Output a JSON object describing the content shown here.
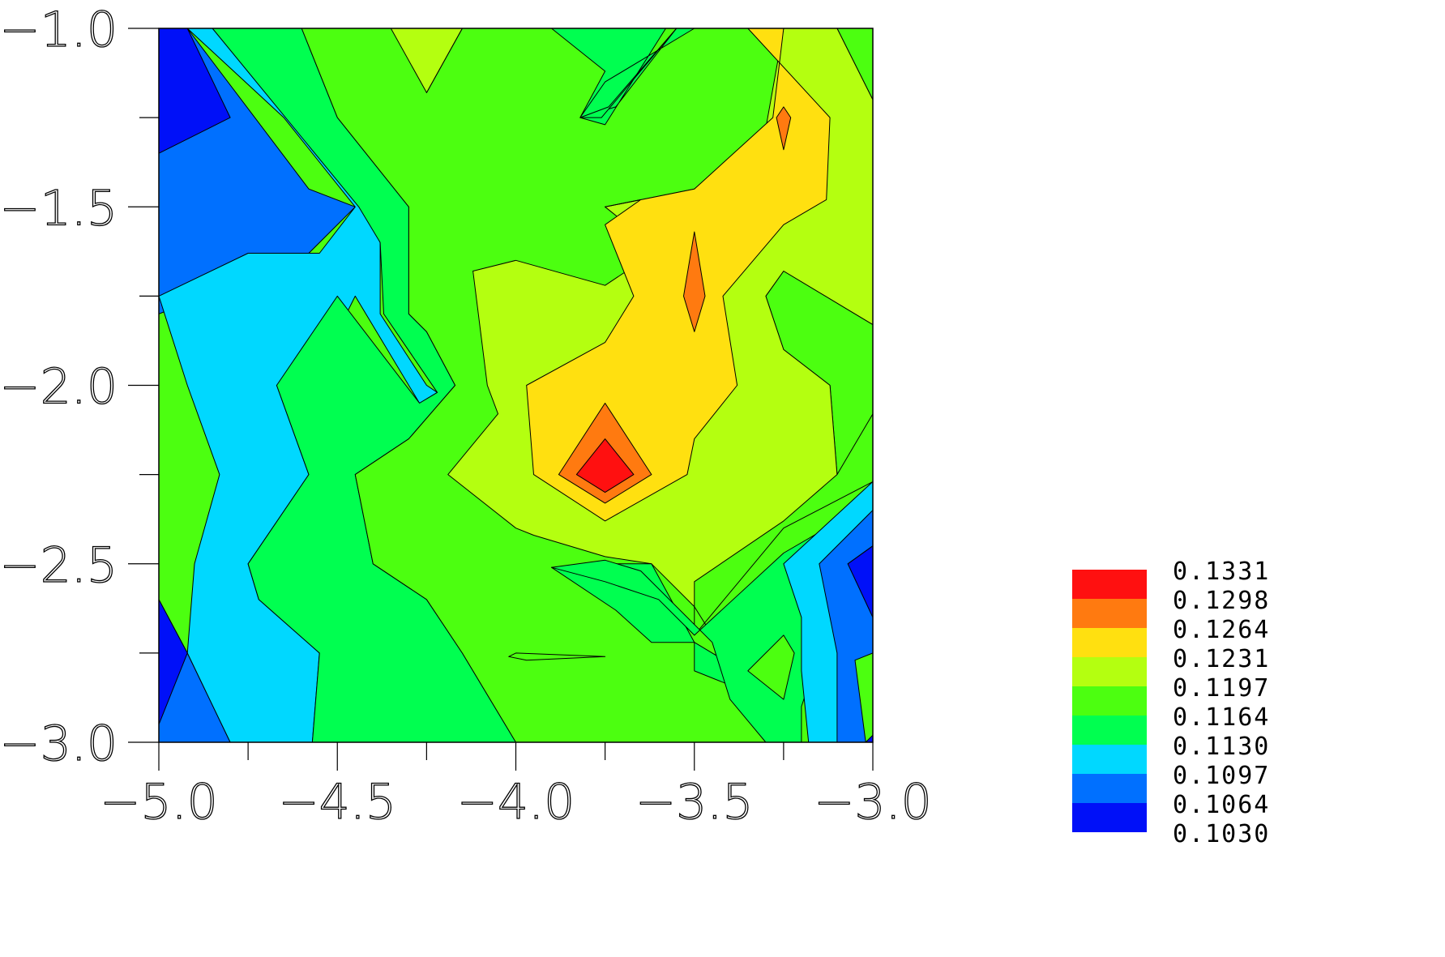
{
  "chart_data": {
    "type": "contour",
    "title": "",
    "xlabel": "",
    "ylabel": "",
    "xlim": [
      -5.0,
      -3.0
    ],
    "ylim": [
      -3.0,
      -1.0
    ],
    "x_ticks": [
      "-5.0",
      "-4.5",
      "-4.0",
      "-3.5",
      "-3.0"
    ],
    "y_ticks": [
      "-1.0",
      "-1.5",
      "-2.0",
      "-2.5",
      "-3.0"
    ],
    "minor_ticks": true,
    "grid": false,
    "legend": {
      "placement": "bottom-right",
      "levels": [
        "0.1331",
        "0.1298",
        "0.1264",
        "0.1231",
        "0.1197",
        "0.1164",
        "0.1130",
        "0.1097",
        "0.1064",
        "0.1030"
      ],
      "colors": [
        "#ff1010",
        "#ff7a10",
        "#ffe010",
        "#b4ff10",
        "#4cff10",
        "#00ff50",
        "#00d8ff",
        "#0070ff",
        "#0010f8",
        ""
      ]
    },
    "regions": [
      {
        "level": "0.1064",
        "color": "#0070ff",
        "points": [
          [
            -5.0,
            -1.0
          ],
          [
            -4.92,
            -1.0
          ],
          [
            -4.58,
            -1.45
          ],
          [
            -4.45,
            -1.5
          ],
          [
            -4.6,
            -1.65
          ],
          [
            -4.62,
            -1.65
          ],
          [
            -5.0,
            -1.8
          ],
          [
            -5.0,
            -2.6
          ],
          [
            -4.92,
            -2.75
          ],
          [
            -4.8,
            -3.0
          ],
          [
            -5.0,
            -3.0
          ]
        ]
      },
      {
        "level": "0.1097",
        "color": "#00d8ff",
        "points": [
          [
            -4.92,
            -1.0
          ],
          [
            -4.85,
            -1.0
          ],
          [
            -4.45,
            -1.45
          ],
          [
            -4.38,
            -1.6
          ],
          [
            -4.38,
            -1.8
          ],
          [
            -4.25,
            -2.0
          ],
          [
            -4.22,
            -2.02
          ],
          [
            -4.27,
            -2.05
          ],
          [
            -4.45,
            -1.75
          ],
          [
            -4.55,
            -1.95
          ],
          [
            -4.67,
            -2.0
          ],
          [
            -4.58,
            -2.25
          ],
          [
            -4.75,
            -2.5
          ],
          [
            -4.72,
            -2.6
          ],
          [
            -4.55,
            -2.75
          ],
          [
            -4.57,
            -3.0
          ],
          [
            -4.8,
            -3.0
          ],
          [
            -4.92,
            -2.75
          ],
          [
            -4.9,
            -2.5
          ],
          [
            -4.83,
            -2.25
          ],
          [
            -4.92,
            -2.0
          ],
          [
            -5.0,
            -1.75
          ],
          [
            -4.75,
            -1.63
          ],
          [
            -4.55,
            -1.63
          ],
          [
            -4.45,
            -1.5
          ],
          [
            -4.65,
            -1.25
          ]
        ]
      },
      {
        "level": "0.1130",
        "color": "#00ff50",
        "points": [
          [
            -4.85,
            -1.0
          ],
          [
            -4.6,
            -1.0
          ],
          [
            -4.5,
            -1.25
          ],
          [
            -4.3,
            -1.5
          ],
          [
            -4.3,
            -1.8
          ],
          [
            -4.25,
            -1.85
          ],
          [
            -4.17,
            -2.0
          ],
          [
            -4.3,
            -2.15
          ],
          [
            -4.45,
            -2.25
          ],
          [
            -4.4,
            -2.5
          ],
          [
            -4.25,
            -2.6
          ],
          [
            -4.15,
            -2.75
          ],
          [
            -4.0,
            -3.0
          ],
          [
            -4.57,
            -3.0
          ],
          [
            -4.55,
            -2.75
          ],
          [
            -4.72,
            -2.6
          ],
          [
            -4.75,
            -2.5
          ],
          [
            -4.58,
            -2.25
          ],
          [
            -4.67,
            -2.0
          ],
          [
            -4.5,
            -1.75
          ],
          [
            -4.27,
            -2.05
          ],
          [
            -4.22,
            -2.02
          ],
          [
            -4.37,
            -1.8
          ],
          [
            -4.38,
            -1.6
          ],
          [
            -4.44,
            -1.5
          ]
        ]
      },
      {
        "level": "0.1164",
        "color": "#4cff10",
        "points": [
          [
            -4.6,
            -1.0
          ],
          [
            -4.3,
            -1.0
          ],
          [
            -4.25,
            -1.18
          ],
          [
            -4.15,
            -1.0
          ],
          [
            -3.6,
            -1.0
          ],
          [
            -3.3,
            -1.0
          ],
          [
            -3.1,
            -1.0
          ],
          [
            -3.0,
            -1.2
          ],
          [
            -3.0,
            -1.83
          ],
          [
            -3.25,
            -1.68
          ],
          [
            -3.3,
            -1.75
          ],
          [
            -3.25,
            -1.9
          ],
          [
            -3.12,
            -2.0
          ],
          [
            -3.1,
            -2.25
          ],
          [
            -3.0,
            -2.08
          ],
          [
            -3.0,
            -2.27
          ],
          [
            -3.25,
            -2.4
          ],
          [
            -3.5,
            -2.7
          ],
          [
            -3.5,
            -2.62
          ],
          [
            -3.4,
            -2.78
          ],
          [
            -3.3,
            -2.88
          ],
          [
            -3.25,
            -2.88
          ],
          [
            -3.22,
            -3.0
          ],
          [
            -3.35,
            -3.0
          ],
          [
            -3.7,
            -3.0
          ],
          [
            -4.0,
            -3.0
          ],
          [
            -4.15,
            -2.75
          ],
          [
            -4.25,
            -2.6
          ],
          [
            -4.4,
            -2.5
          ],
          [
            -4.45,
            -2.25
          ],
          [
            -4.3,
            -2.15
          ],
          [
            -4.17,
            -2.0
          ],
          [
            -4.25,
            -1.85
          ],
          [
            -4.3,
            -1.8
          ],
          [
            -4.3,
            -1.5
          ],
          [
            -4.5,
            -1.25
          ]
        ]
      },
      {
        "level": "0.1197",
        "color": "#b4ff10",
        "points": [
          [
            -4.3,
            -1.0
          ],
          [
            -4.15,
            -1.0
          ],
          [
            -4.25,
            -1.18
          ]
        ]
      },
      {
        "level": "0.1197",
        "color": "#b4ff10",
        "points": [
          [
            -4.0,
            -1.65
          ],
          [
            -3.75,
            -1.72
          ],
          [
            -3.6,
            -1.62
          ],
          [
            -3.75,
            -1.5
          ],
          [
            -3.5,
            -1.45
          ],
          [
            -3.3,
            -1.28
          ],
          [
            -3.25,
            -1.0
          ],
          [
            -3.1,
            -1.0
          ],
          [
            -3.0,
            -1.2
          ],
          [
            -3.0,
            -1.83
          ],
          [
            -3.25,
            -1.68
          ],
          [
            -3.3,
            -1.75
          ],
          [
            -3.25,
            -1.9
          ],
          [
            -3.12,
            -2.0
          ],
          [
            -3.1,
            -2.25
          ],
          [
            -3.25,
            -2.38
          ],
          [
            -3.5,
            -2.55
          ],
          [
            -3.5,
            -2.62
          ],
          [
            -3.62,
            -2.5
          ],
          [
            -3.75,
            -2.48
          ],
          [
            -3.95,
            -2.42
          ],
          [
            -4.0,
            -2.4
          ],
          [
            -4.19,
            -2.25
          ],
          [
            -4.05,
            -2.08
          ],
          [
            -4.08,
            -2.0
          ],
          [
            -4.12,
            -1.68
          ]
        ]
      },
      {
        "level": "0.1197",
        "color": "#b4ff10",
        "points": [
          [
            -4.35,
            -1.0
          ],
          [
            -4.15,
            -1.0
          ],
          [
            -4.25,
            -1.18
          ]
        ]
      },
      {
        "level": "0.1231",
        "color": "#ffe010",
        "points": [
          [
            -3.75,
            -1.5
          ],
          [
            -3.5,
            -1.45
          ],
          [
            -3.28,
            -1.25
          ],
          [
            -3.25,
            -1.0
          ],
          [
            -3.35,
            -1.0
          ],
          [
            -3.12,
            -1.25
          ],
          [
            -3.13,
            -1.48
          ],
          [
            -3.25,
            -1.55
          ],
          [
            -3.42,
            -1.75
          ],
          [
            -3.38,
            -2.0
          ],
          [
            -3.5,
            -2.15
          ],
          [
            -3.52,
            -2.25
          ],
          [
            -3.75,
            -2.38
          ],
          [
            -3.95,
            -2.25
          ],
          [
            -3.97,
            -2.0
          ],
          [
            -3.75,
            -1.88
          ],
          [
            -3.67,
            -1.75
          ],
          [
            -3.75,
            -1.55
          ],
          [
            -3.65,
            -1.48
          ]
        ]
      },
      {
        "level": "0.1231",
        "color": "#ffe010",
        "points": [
          [
            -3.85,
            -1.0
          ],
          [
            -3.75,
            -1.06
          ],
          [
            -3.68,
            -1.0
          ]
        ]
      },
      {
        "level": "0.1264",
        "color": "#ff7a10",
        "points": [
          [
            -3.75,
            -2.05
          ],
          [
            -3.62,
            -2.25
          ],
          [
            -3.75,
            -2.33
          ],
          [
            -3.88,
            -2.25
          ]
        ]
      },
      {
        "level": "0.1264",
        "color": "#ff7a10",
        "points": [
          [
            -3.5,
            -1.57
          ],
          [
            -3.47,
            -1.75
          ],
          [
            -3.5,
            -1.85
          ],
          [
            -3.53,
            -1.75
          ]
        ]
      },
      {
        "level": "0.1264",
        "color": "#ff7a10",
        "points": [
          [
            -3.25,
            -1.22
          ],
          [
            -3.23,
            -1.25
          ],
          [
            -3.25,
            -1.34
          ],
          [
            -3.27,
            -1.25
          ]
        ]
      },
      {
        "level": "0.1298",
        "color": "#ff1010",
        "points": [
          [
            -3.75,
            -2.15
          ],
          [
            -3.67,
            -2.25
          ],
          [
            -3.75,
            -2.3
          ],
          [
            -3.83,
            -2.25
          ]
        ]
      },
      {
        "level": "0.1130",
        "color": "#00ff50",
        "points": [
          [
            -3.9,
            -1.0
          ],
          [
            -3.75,
            -1.12
          ],
          [
            -3.82,
            -1.25
          ],
          [
            -3.72,
            -1.22
          ],
          [
            -3.55,
            -1.0
          ],
          [
            -3.5,
            -1.0
          ],
          [
            -3.75,
            -1.15
          ],
          [
            -3.82,
            -1.25
          ],
          [
            -3.75,
            -1.27
          ],
          [
            -3.58,
            -1.0
          ]
        ]
      },
      {
        "level": "0.1130",
        "color": "#00ff50",
        "points": [
          [
            -3.55,
            -1.0
          ],
          [
            -3.74,
            -1.22
          ],
          [
            -3.82,
            -1.25
          ],
          [
            -3.76,
            -1.25
          ]
        ]
      },
      {
        "level": "0.1130",
        "color": "#00ff50",
        "points": [
          [
            -3.75,
            -2.5
          ],
          [
            -3.62,
            -2.5
          ],
          [
            -3.5,
            -2.72
          ],
          [
            -3.5,
            -2.8
          ],
          [
            -3.25,
            -2.9
          ],
          [
            -3.25,
            -2.68
          ],
          [
            -3.3,
            -2.75
          ],
          [
            -3.27,
            -2.85
          ],
          [
            -3.4,
            -2.78
          ],
          [
            -3.5,
            -2.72
          ],
          [
            -3.62,
            -2.72
          ],
          [
            -3.72,
            -2.63
          ],
          [
            -3.9,
            -2.51
          ]
        ]
      },
      {
        "level": "0.1130",
        "color": "#00ff50",
        "points": [
          [
            -3.9,
            -2.51
          ],
          [
            -3.75,
            -2.49
          ],
          [
            -3.65,
            -2.52
          ],
          [
            -3.45,
            -2.72
          ],
          [
            -3.4,
            -2.88
          ],
          [
            -3.3,
            -3.0
          ],
          [
            -3.2,
            -3.0
          ],
          [
            -3.2,
            -2.9
          ],
          [
            -3.15,
            -2.75
          ],
          [
            -3.05,
            -2.64
          ],
          [
            -3.0,
            -2.55
          ],
          [
            -3.0,
            -2.27
          ],
          [
            -3.13,
            -2.4
          ],
          [
            -3.25,
            -2.47
          ],
          [
            -3.5,
            -2.7
          ],
          [
            -3.6,
            -2.6
          ],
          [
            -3.75,
            -2.55
          ]
        ]
      },
      {
        "level": "0.1164",
        "color": "#4cff10",
        "points": [
          [
            -3.35,
            -2.8
          ],
          [
            -3.25,
            -2.7
          ],
          [
            -3.22,
            -2.75
          ],
          [
            -3.25,
            -2.88
          ]
        ]
      },
      {
        "level": "0.1164",
        "color": "#4cff10",
        "points": [
          [
            -4.0,
            -2.75
          ],
          [
            -3.75,
            -2.76
          ],
          [
            -3.97,
            -2.77
          ],
          [
            -4.02,
            -2.76
          ]
        ]
      },
      {
        "level": "0.1097",
        "color": "#00d8ff",
        "points": [
          [
            -3.25,
            -2.5
          ],
          [
            -3.0,
            -2.27
          ],
          [
            -3.0,
            -2.35
          ],
          [
            -3.15,
            -2.5
          ],
          [
            -3.05,
            -2.75
          ],
          [
            -3.05,
            -3.0
          ],
          [
            -3.18,
            -3.0
          ],
          [
            -3.2,
            -2.8
          ],
          [
            -3.2,
            -2.65
          ]
        ]
      },
      {
        "level": "0.1064",
        "color": "#0070ff",
        "points": [
          [
            -3.15,
            -2.5
          ],
          [
            -3.0,
            -2.35
          ],
          [
            -3.0,
            -2.45
          ],
          [
            -3.07,
            -2.5
          ],
          [
            -3.0,
            -2.65
          ],
          [
            -3.0,
            -2.75
          ],
          [
            -3.05,
            -2.77
          ],
          [
            -3.02,
            -3.0
          ],
          [
            -3.1,
            -3.0
          ],
          [
            -3.1,
            -2.75
          ]
        ]
      },
      {
        "level": "0.1030",
        "color": "#0010f8",
        "points": [
          [
            -3.07,
            -2.5
          ],
          [
            -3.0,
            -2.45
          ],
          [
            -3.0,
            -2.65
          ]
        ]
      },
      {
        "level": "0.1030",
        "color": "#0010f8",
        "points": [
          [
            -5.0,
            -1.0
          ],
          [
            -4.92,
            -1.0
          ],
          [
            -4.8,
            -1.25
          ],
          [
            -5.0,
            -1.35
          ]
        ]
      },
      {
        "level": "0.1030",
        "color": "#0010f8",
        "points": [
          [
            -5.0,
            -2.6
          ],
          [
            -4.92,
            -2.75
          ],
          [
            -5.0,
            -2.95
          ]
        ]
      },
      {
        "level": "0.1030",
        "color": "#0010f8",
        "points": [
          [
            -3.02,
            -3.0
          ],
          [
            -3.0,
            -2.98
          ],
          [
            -3.0,
            -3.0
          ]
        ]
      }
    ]
  }
}
